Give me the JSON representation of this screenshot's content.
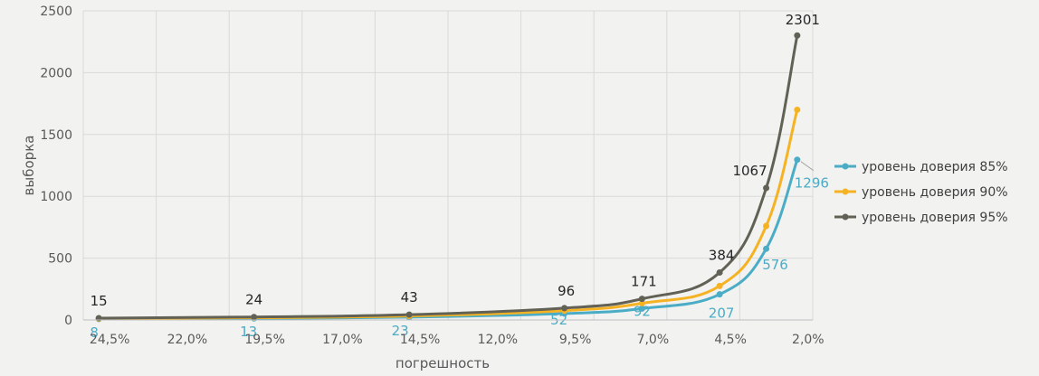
{
  "chart_data": {
    "type": "line",
    "title": "",
    "xlabel": "погрешность",
    "ylabel": "выборка",
    "ylim": [
      0,
      2500
    ],
    "yticks": [
      0,
      500,
      1000,
      1500,
      2000,
      2500
    ],
    "xlim": [
      25,
      1.5
    ],
    "xticks": [
      "24,5%",
      "22,0%",
      "19,5%",
      "17,0%",
      "14,5%",
      "12,0%",
      "9,5%",
      "7,0%",
      "4,5%",
      "2,0%"
    ],
    "xtick_values": [
      24.5,
      22.0,
      19.5,
      17.0,
      14.5,
      12.0,
      9.5,
      7.0,
      4.5,
      2.0
    ],
    "grid": true,
    "legend": "right",
    "series": [
      {
        "name": "уровень доверия 85%",
        "color": "#4bacc6",
        "x": [
          24.5,
          19.5,
          14.5,
          9.5,
          7.0,
          4.5,
          3.0,
          2.0
        ],
        "y": [
          8,
          13,
          23,
          52,
          92,
          207,
          576,
          1296
        ],
        "labels": [
          "8",
          "13",
          "23",
          "52",
          "92",
          "207",
          "576",
          "1296"
        ],
        "labeled": [
          true,
          true,
          true,
          true,
          true,
          true,
          true,
          true
        ]
      },
      {
        "name": "уровень доверия 90%",
        "color": "#f5b324",
        "x": [
          24.5,
          19.5,
          14.5,
          9.5,
          7.0,
          4.5,
          3.0,
          2.0
        ],
        "y": [
          11,
          18,
          32,
          75,
          135,
          275,
          760,
          1700
        ],
        "labels": [],
        "labeled": [
          false,
          false,
          false,
          false,
          false,
          false,
          false,
          false
        ]
      },
      {
        "name": "уровень доверия 95%",
        "color": "#616156",
        "x": [
          24.5,
          19.5,
          14.5,
          9.5,
          7.0,
          4.5,
          3.0,
          2.0
        ],
        "y": [
          15,
          24,
          43,
          96,
          171,
          384,
          1067,
          2301
        ],
        "labels": [
          "15",
          "24",
          "43",
          "96",
          "171",
          "384",
          "1067",
          "2301"
        ],
        "labeled": [
          true,
          true,
          true,
          true,
          true,
          true,
          true,
          true
        ]
      }
    ]
  }
}
